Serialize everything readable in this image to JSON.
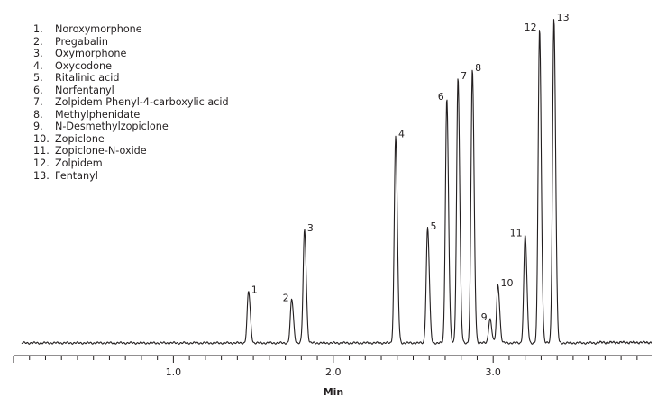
{
  "chart_data": {
    "type": "line",
    "title": "",
    "xlabel": "Min",
    "ylabel": "",
    "xlim": [
      0.0,
      3.9
    ],
    "ylim": [
      0,
      100
    ],
    "x_ticks": [
      1.0,
      2.0,
      3.0
    ],
    "x_tick_labels": [
      "1.0",
      "2.0",
      "3.0"
    ],
    "grid": false,
    "legend_position": "top-left",
    "line_color": "#231f20",
    "peaks": [
      {
        "label": "1",
        "compound": "Noroxymorphone",
        "rt": 1.47,
        "height": 16.0
      },
      {
        "label": "2",
        "compound": "Pregabalin",
        "rt": 1.74,
        "height": 13.5
      },
      {
        "label": "3",
        "compound": "Oxymorphone",
        "rt": 1.82,
        "height": 35.0
      },
      {
        "label": "4",
        "compound": "Oxycodone",
        "rt": 2.39,
        "height": 64.0
      },
      {
        "label": "5",
        "compound": "Ritalinic acid",
        "rt": 2.59,
        "height": 35.5
      },
      {
        "label": "6",
        "compound": "Norfentanyl",
        "rt": 2.71,
        "height": 75.5
      },
      {
        "label": "7",
        "compound": "Zolpidem Phenyl-4-carboxylic acid",
        "rt": 2.78,
        "height": 82.0
      },
      {
        "label": "8",
        "compound": "Methylphenidate",
        "rt": 2.87,
        "height": 84.5
      },
      {
        "label": "9",
        "compound": "N-Desmethylzopiclone",
        "rt": 2.98,
        "height": 7.5
      },
      {
        "label": "10",
        "compound": "Zopiclone",
        "rt": 3.03,
        "height": 18.0
      },
      {
        "label": "11",
        "compound": "Zopiclone-N-oxide",
        "rt": 3.2,
        "height": 33.5
      },
      {
        "label": "12",
        "compound": "Zolpidem",
        "rt": 3.29,
        "height": 97.0
      },
      {
        "label": "13",
        "compound": "Fentanyl",
        "rt": 3.38,
        "height": 100.0
      }
    ],
    "legend": [
      {
        "num": "1.",
        "name": "Noroxymorphone"
      },
      {
        "num": "2.",
        "name": "Pregabalin"
      },
      {
        "num": "3.",
        "name": "Oxymorphone"
      },
      {
        "num": "4.",
        "name": "Oxycodone"
      },
      {
        "num": "5.",
        "name": "Ritalinic acid"
      },
      {
        "num": "6.",
        "name": "Norfentanyl"
      },
      {
        "num": "7.",
        "name": "Zolpidem Phenyl-4-carboxylic acid"
      },
      {
        "num": "8.",
        "name": "Methylphenidate"
      },
      {
        "num": "9.",
        "name": "N-Desmethylzopiclone"
      },
      {
        "num": "10.",
        "name": "Zopiclone"
      },
      {
        "num": "11.",
        "name": "Zopiclone-N-oxide"
      },
      {
        "num": "12.",
        "name": "Zolpidem"
      },
      {
        "num": "13.",
        "name": "Fentanyl"
      }
    ]
  }
}
